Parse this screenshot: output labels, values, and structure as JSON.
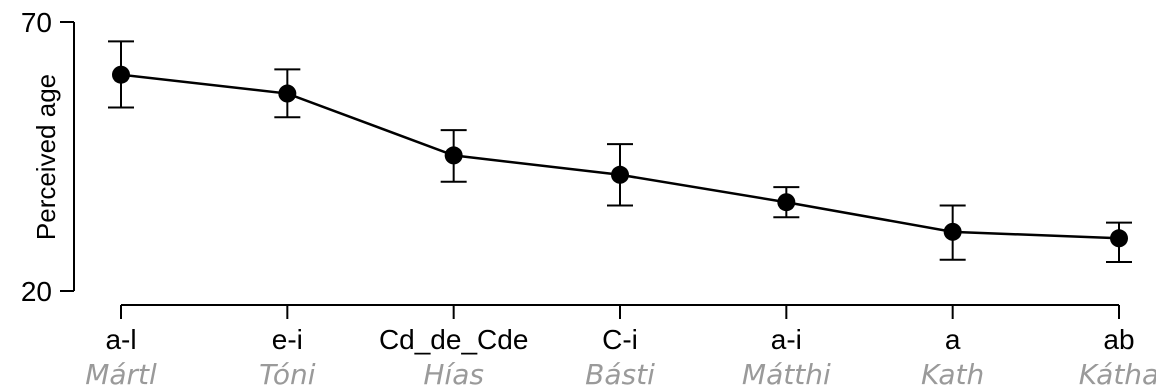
{
  "chart_data": {
    "type": "line",
    "ylabel": "Perceived age",
    "ylim": [
      20,
      70
    ],
    "yticks": [
      20,
      70
    ],
    "categories": [
      "a-l",
      "e-i",
      "Cd_de_Cde",
      "C-i",
      "a-i",
      "a",
      "ab"
    ],
    "sublabels": [
      "Mártl",
      "Tóni",
      "Hías",
      "Básti",
      "Mátthi",
      "Kath",
      "Kátha"
    ],
    "series": [
      {
        "values": [
          60.2,
          56.7,
          45.2,
          41.6,
          36.5,
          31.0,
          29.8
        ],
        "err_low": [
          54.1,
          52.3,
          40.3,
          35.9,
          33.7,
          25.8,
          25.4
        ],
        "err_high": [
          66.4,
          61.2,
          49.9,
          47.3,
          39.3,
          35.9,
          32.7
        ]
      }
    ],
    "grid": false,
    "legend": "none"
  }
}
